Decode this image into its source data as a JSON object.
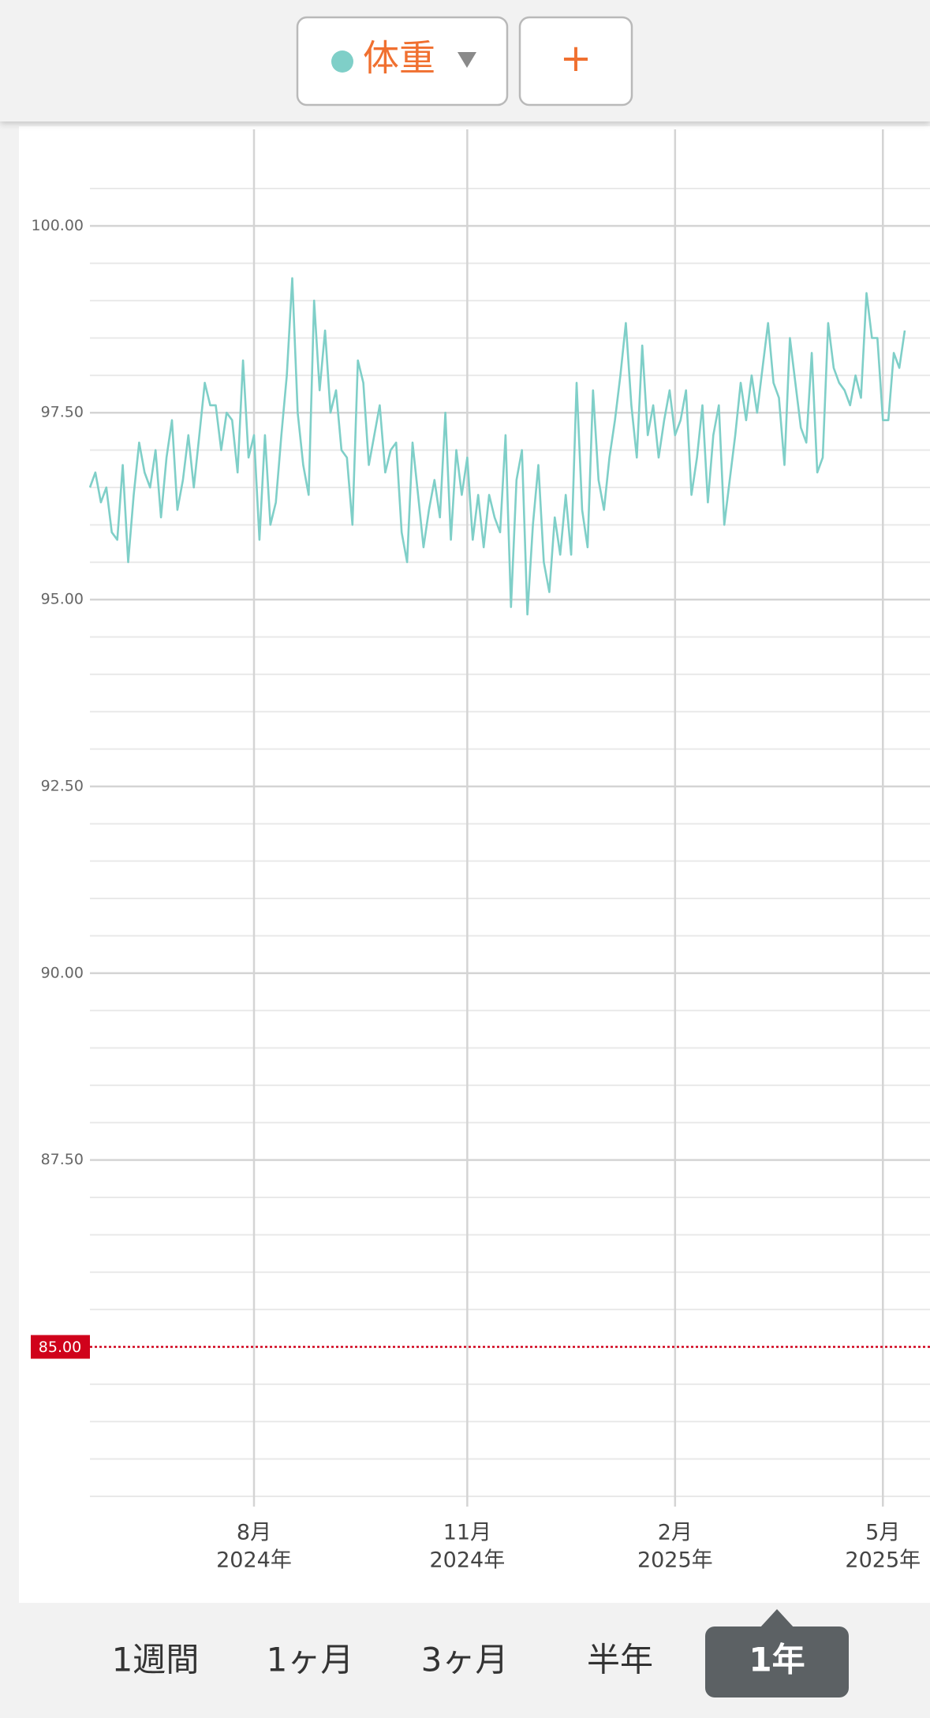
{
  "header": {
    "selector_label": "体重",
    "add_button": "+"
  },
  "chart_data": {
    "type": "line",
    "series": [
      {
        "name": "体重",
        "color": "#7fcfc8",
        "values": [
          96.5,
          96.7,
          96.3,
          96.5,
          95.9,
          95.8,
          96.8,
          95.5,
          96.4,
          97.1,
          96.7,
          96.5,
          97.0,
          96.1,
          96.9,
          97.4,
          96.2,
          96.6,
          97.2,
          96.5,
          97.2,
          97.9,
          97.6,
          97.6,
          97.0,
          97.5,
          97.4,
          96.7,
          98.2,
          96.9,
          97.2,
          95.8,
          97.2,
          96.0,
          96.3,
          97.2,
          98.0,
          99.3,
          97.5,
          96.8,
          96.4,
          99.0,
          97.8,
          98.6,
          97.5,
          97.8,
          97.0,
          96.9,
          96.0,
          98.2,
          97.9,
          96.8,
          97.2,
          97.6,
          96.7,
          97.0,
          97.1,
          95.9,
          95.5,
          97.1,
          96.4,
          95.7,
          96.2,
          96.6,
          96.1,
          97.5,
          95.8,
          97.0,
          96.4,
          96.9,
          95.8,
          96.4,
          95.7,
          96.4,
          96.1,
          95.9,
          97.2,
          94.9,
          96.6,
          97.0,
          94.8,
          96.0,
          96.8,
          95.5,
          95.1,
          96.1,
          95.6,
          96.4,
          95.6,
          97.9,
          96.2,
          95.7,
          97.8,
          96.6,
          96.2,
          96.9,
          97.4,
          98.0,
          98.7,
          97.6,
          96.9,
          98.4,
          97.2,
          97.6,
          96.9,
          97.4,
          97.8,
          97.2,
          97.4,
          97.8,
          96.4,
          96.9,
          97.6,
          96.3,
          97.2,
          97.6,
          96.0,
          96.6,
          97.2,
          97.9,
          97.4,
          98.0,
          97.5,
          98.1,
          98.7,
          97.9,
          97.7,
          96.8,
          98.5,
          97.9,
          97.3,
          97.1,
          98.3,
          96.7,
          96.9,
          98.7,
          98.1,
          97.9,
          97.8,
          97.6,
          98.0,
          97.7,
          99.1,
          98.5,
          98.5,
          97.4,
          97.4,
          98.3,
          98.1,
          98.6
        ]
      }
    ],
    "xlim": [
      0,
      149
    ],
    "xticks": [
      {
        "value": 30,
        "label": [
          "8月",
          "2024年"
        ]
      },
      {
        "value": 69,
        "label": [
          "11月",
          "2024年"
        ]
      },
      {
        "value": 107,
        "label": [
          "2月",
          "2025年"
        ]
      },
      {
        "value": 145,
        "label": [
          "5月",
          "2025年"
        ]
      }
    ],
    "ylim": [
      83,
      100.5
    ],
    "yticks": [
      {
        "value": 87.5,
        "label": "87.50"
      },
      {
        "value": 90,
        "label": "90.00"
      },
      {
        "value": 92.5,
        "label": "92.50"
      },
      {
        "value": 95,
        "label": "95.00"
      },
      {
        "value": 97.5,
        "label": "97.50"
      },
      {
        "value": 100,
        "label": "100.00"
      }
    ],
    "y_minor_ticks": [
      83,
      83.5,
      84,
      84.5,
      85.5,
      86,
      86.5,
      87,
      88,
      88.5,
      89,
      89.5,
      90.5,
      91,
      91.5,
      92,
      93,
      93.5,
      94,
      94.5,
      95.5,
      96,
      96.5,
      97,
      98,
      98.5,
      99,
      99.5,
      100.5
    ],
    "target": {
      "value": 85,
      "label": "85.00",
      "color": "#d0021b"
    },
    "grid": true
  },
  "tabs": {
    "items": [
      "1週間",
      "1ヶ月",
      "3ヶ月",
      "半年",
      "1年"
    ],
    "selected": 4
  }
}
